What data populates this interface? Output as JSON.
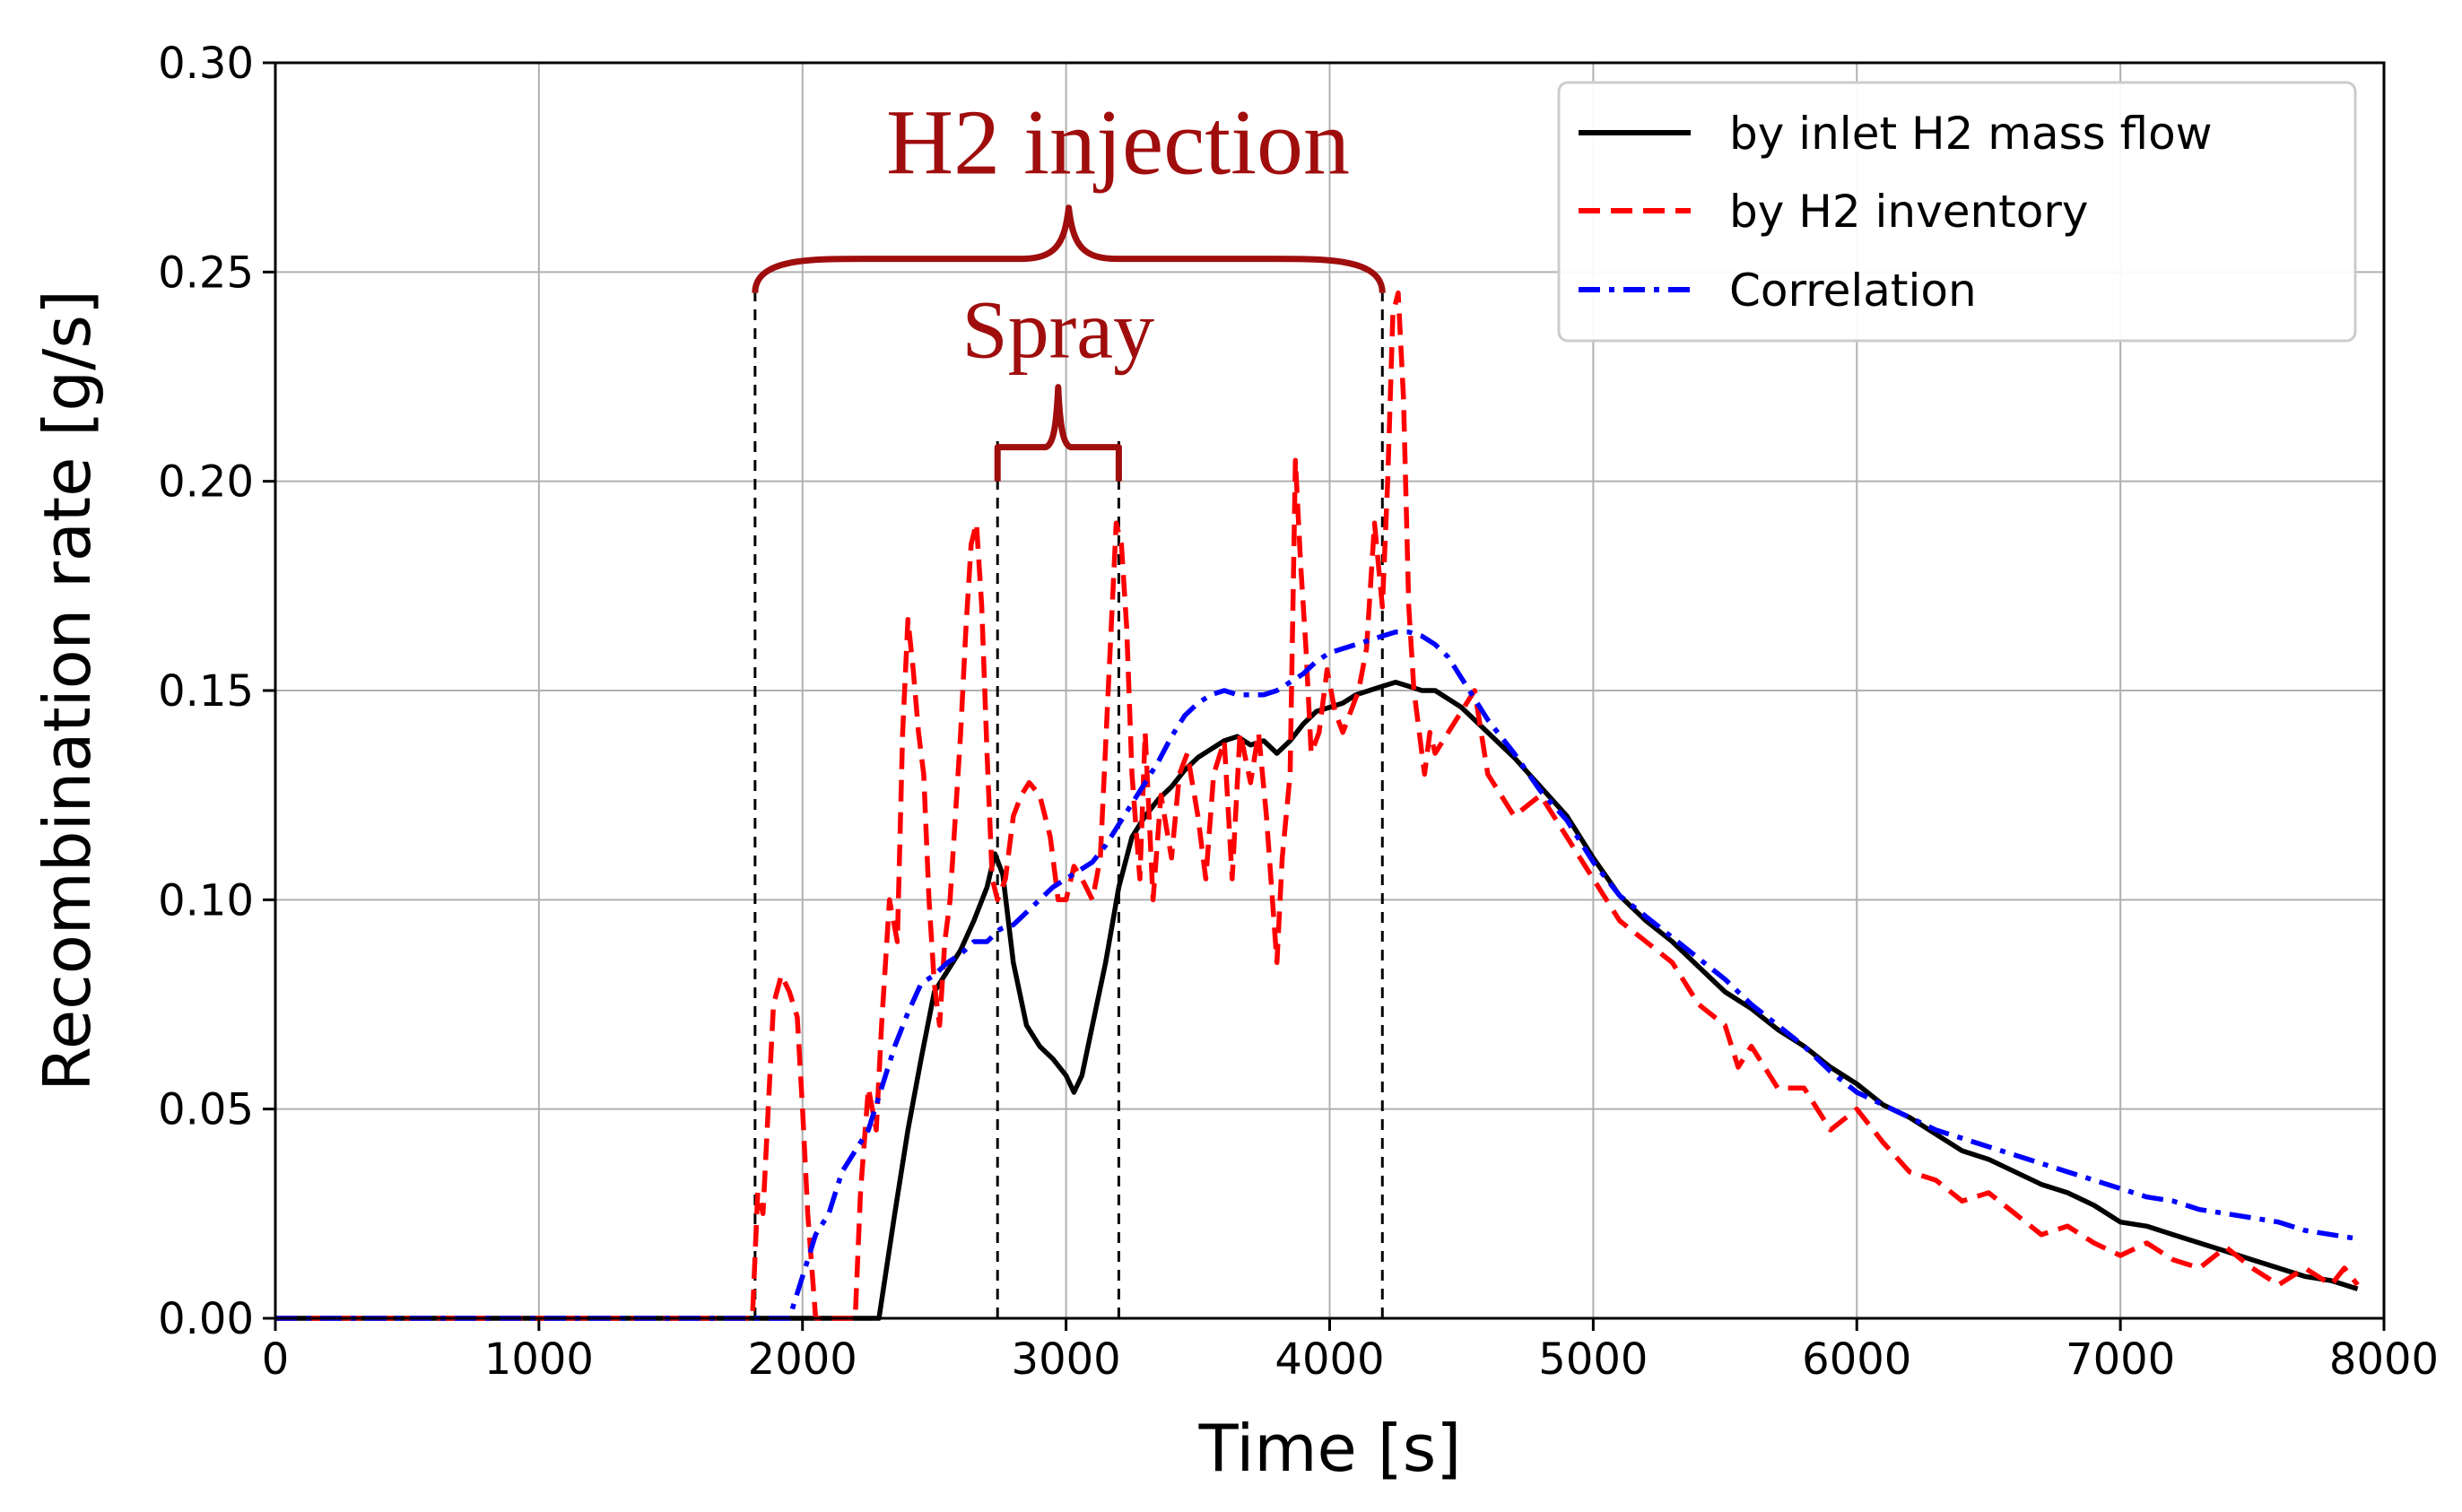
{
  "chart_data": {
    "type": "line",
    "xlabel": "Time [s]",
    "ylabel": "Recombination rate [g/s]",
    "xlim": [
      0,
      8000
    ],
    "ylim": [
      0,
      0.3
    ],
    "xticks": [
      0,
      1000,
      2000,
      3000,
      4000,
      5000,
      6000,
      7000,
      8000
    ],
    "yticks": [
      0.0,
      0.05,
      0.1,
      0.15,
      0.2,
      0.25,
      0.3
    ],
    "xtick_labels": [
      "0",
      "1000",
      "2000",
      "3000",
      "4000",
      "5000",
      "6000",
      "7000",
      "8000"
    ],
    "ytick_labels": [
      "0.00",
      "0.05",
      "0.10",
      "0.15",
      "0.20",
      "0.25",
      "0.30"
    ],
    "grid": true,
    "legend_position": "top-right",
    "series": [
      {
        "name": "by inlet H2 mass flow",
        "color": "#000000",
        "style": "solid",
        "x": [
          0,
          2290,
          2350,
          2400,
          2450,
          2500,
          2550,
          2600,
          2650,
          2700,
          2730,
          2760,
          2800,
          2850,
          2900,
          2950,
          3000,
          3030,
          3060,
          3100,
          3150,
          3200,
          3250,
          3300,
          3350,
          3400,
          3450,
          3500,
          3550,
          3600,
          3650,
          3700,
          3750,
          3800,
          3850,
          3900,
          3950,
          4000,
          4050,
          4100,
          4150,
          4200,
          4250,
          4300,
          4350,
          4400,
          4450,
          4500,
          4550,
          4600,
          4700,
          4800,
          4900,
          5000,
          5100,
          5200,
          5300,
          5400,
          5500,
          5600,
          5700,
          5800,
          5900,
          6000,
          6100,
          6200,
          6300,
          6400,
          6500,
          6600,
          6700,
          6800,
          6900,
          7000,
          7100,
          7200,
          7300,
          7400,
          7500,
          7600,
          7700,
          7800,
          7900
        ],
        "y": [
          0,
          0,
          0.025,
          0.045,
          0.062,
          0.078,
          0.083,
          0.088,
          0.095,
          0.103,
          0.111,
          0.106,
          0.085,
          0.07,
          0.065,
          0.062,
          0.058,
          0.054,
          0.058,
          0.07,
          0.085,
          0.103,
          0.115,
          0.12,
          0.124,
          0.127,
          0.131,
          0.134,
          0.136,
          0.138,
          0.139,
          0.137,
          0.138,
          0.135,
          0.138,
          0.142,
          0.145,
          0.146,
          0.147,
          0.149,
          0.15,
          0.151,
          0.152,
          0.151,
          0.15,
          0.15,
          0.148,
          0.146,
          0.143,
          0.14,
          0.134,
          0.127,
          0.12,
          0.11,
          0.101,
          0.095,
          0.09,
          0.084,
          0.078,
          0.074,
          0.069,
          0.065,
          0.06,
          0.056,
          0.051,
          0.048,
          0.044,
          0.04,
          0.038,
          0.035,
          0.032,
          0.03,
          0.027,
          0.023,
          0.022,
          0.02,
          0.018,
          0.016,
          0.014,
          0.012,
          0.01,
          0.009,
          0.007
        ]
      },
      {
        "name": "by H2 inventory",
        "color": "#ff0000",
        "style": "dashed",
        "x": [
          0,
          1810,
          1830,
          1850,
          1870,
          1890,
          1920,
          1950,
          1980,
          2000,
          2020,
          2050,
          2100,
          2150,
          2200,
          2220,
          2250,
          2280,
          2300,
          2330,
          2360,
          2380,
          2400,
          2420,
          2440,
          2460,
          2480,
          2500,
          2520,
          2540,
          2560,
          2580,
          2600,
          2620,
          2640,
          2660,
          2680,
          2700,
          2720,
          2740,
          2770,
          2800,
          2830,
          2860,
          2900,
          2940,
          2970,
          3000,
          3030,
          3060,
          3100,
          3130,
          3160,
          3190,
          3210,
          3230,
          3250,
          3280,
          3300,
          3330,
          3360,
          3400,
          3430,
          3460,
          3500,
          3530,
          3560,
          3600,
          3630,
          3660,
          3700,
          3730,
          3760,
          3800,
          3820,
          3850,
          3870,
          3890,
          3910,
          3930,
          3960,
          3990,
          4020,
          4050,
          4080,
          4110,
          4140,
          4170,
          4200,
          4220,
          4240,
          4260,
          4280,
          4300,
          4320,
          4340,
          4360,
          4380,
          4400,
          4450,
          4500,
          4550,
          4600,
          4700,
          4800,
          4900,
          5000,
          5100,
          5200,
          5300,
          5400,
          5500,
          5550,
          5600,
          5700,
          5800,
          5900,
          6000,
          6100,
          6200,
          6300,
          6400,
          6500,
          6600,
          6700,
          6800,
          6900,
          7000,
          7100,
          7200,
          7300,
          7400,
          7500,
          7600,
          7700,
          7750,
          7800,
          7850,
          7900
        ],
        "y": [
          0,
          0,
          0.03,
          0.025,
          0.05,
          0.075,
          0.082,
          0.078,
          0.072,
          0.05,
          0.025,
          0,
          0,
          0,
          0,
          0.03,
          0.055,
          0.045,
          0.07,
          0.1,
          0.09,
          0.14,
          0.167,
          0.155,
          0.14,
          0.13,
          0.1,
          0.08,
          0.07,
          0.09,
          0.1,
          0.12,
          0.14,
          0.165,
          0.185,
          0.19,
          0.17,
          0.135,
          0.105,
          0.1,
          0.105,
          0.12,
          0.125,
          0.128,
          0.125,
          0.115,
          0.1,
          0.1,
          0.108,
          0.105,
          0.1,
          0.11,
          0.15,
          0.19,
          0.185,
          0.165,
          0.13,
          0.105,
          0.14,
          0.1,
          0.125,
          0.11,
          0.13,
          0.135,
          0.12,
          0.105,
          0.13,
          0.138,
          0.105,
          0.14,
          0.128,
          0.14,
          0.12,
          0.085,
          0.11,
          0.13,
          0.205,
          0.18,
          0.16,
          0.135,
          0.14,
          0.155,
          0.145,
          0.14,
          0.145,
          0.15,
          0.16,
          0.19,
          0.17,
          0.2,
          0.24,
          0.245,
          0.22,
          0.17,
          0.15,
          0.14,
          0.13,
          0.14,
          0.135,
          0.14,
          0.145,
          0.15,
          0.13,
          0.12,
          0.125,
          0.115,
          0.105,
          0.095,
          0.09,
          0.085,
          0.075,
          0.07,
          0.06,
          0.065,
          0.055,
          0.055,
          0.045,
          0.05,
          0.042,
          0.035,
          0.033,
          0.028,
          0.03,
          0.025,
          0.02,
          0.022,
          0.018,
          0.015,
          0.018,
          0.014,
          0.012,
          0.017,
          0.012,
          0.008,
          0.012,
          0.01,
          0.008,
          0.012,
          0.008
        ]
      },
      {
        "name": "Correlation",
        "color": "#0000ff",
        "style": "dashdot",
        "x": [
          0,
          1950,
          2000,
          2050,
          2100,
          2150,
          2200,
          2250,
          2300,
          2350,
          2400,
          2450,
          2500,
          2550,
          2600,
          2650,
          2700,
          2750,
          2800,
          2850,
          2900,
          2950,
          3000,
          3050,
          3100,
          3150,
          3200,
          3250,
          3300,
          3350,
          3400,
          3450,
          3500,
          3550,
          3600,
          3650,
          3700,
          3750,
          3800,
          3850,
          3900,
          3950,
          4000,
          4050,
          4100,
          4150,
          4200,
          4250,
          4300,
          4350,
          4400,
          4450,
          4500,
          4550,
          4600,
          4700,
          4800,
          4900,
          5000,
          5100,
          5200,
          5300,
          5400,
          5500,
          5600,
          5700,
          5800,
          5900,
          6000,
          6100,
          6200,
          6300,
          6400,
          6500,
          6600,
          6700,
          6800,
          6900,
          7000,
          7100,
          7200,
          7300,
          7400,
          7500,
          7600,
          7700,
          7800,
          7900
        ],
        "y": [
          0,
          0,
          0.01,
          0.02,
          0.025,
          0.035,
          0.04,
          0.045,
          0.055,
          0.065,
          0.073,
          0.08,
          0.082,
          0.085,
          0.087,
          0.09,
          0.09,
          0.093,
          0.094,
          0.097,
          0.1,
          0.103,
          0.105,
          0.107,
          0.109,
          0.113,
          0.118,
          0.123,
          0.128,
          0.133,
          0.139,
          0.144,
          0.147,
          0.149,
          0.15,
          0.149,
          0.149,
          0.149,
          0.15,
          0.152,
          0.154,
          0.157,
          0.159,
          0.16,
          0.161,
          0.162,
          0.163,
          0.164,
          0.164,
          0.163,
          0.161,
          0.158,
          0.153,
          0.148,
          0.143,
          0.135,
          0.126,
          0.119,
          0.109,
          0.101,
          0.096,
          0.091,
          0.086,
          0.081,
          0.075,
          0.07,
          0.065,
          0.059,
          0.054,
          0.051,
          0.048,
          0.045,
          0.043,
          0.041,
          0.039,
          0.037,
          0.035,
          0.033,
          0.031,
          0.029,
          0.028,
          0.026,
          0.025,
          0.024,
          0.023,
          0.021,
          0.02,
          0.019
        ]
      }
    ],
    "annotations": [
      {
        "name": "h2-injection",
        "text": "H2 injection",
        "color": "#a00d0d",
        "x_start": 1820,
        "x_end": 4200,
        "y_brace": 0.245,
        "y_text": 0.28
      },
      {
        "name": "spray",
        "text": "Spray",
        "color": "#a00d0d",
        "x_start": 2740,
        "x_end": 3200,
        "y_brace": 0.2,
        "y_text": 0.236
      }
    ],
    "reference_lines": [
      {
        "x": 1820,
        "y_top": 0.245
      },
      {
        "x": 2740,
        "y_top": 0.21
      },
      {
        "x": 3200,
        "y_top": 0.21
      },
      {
        "x": 4200,
        "y_top": 0.245
      }
    ]
  }
}
